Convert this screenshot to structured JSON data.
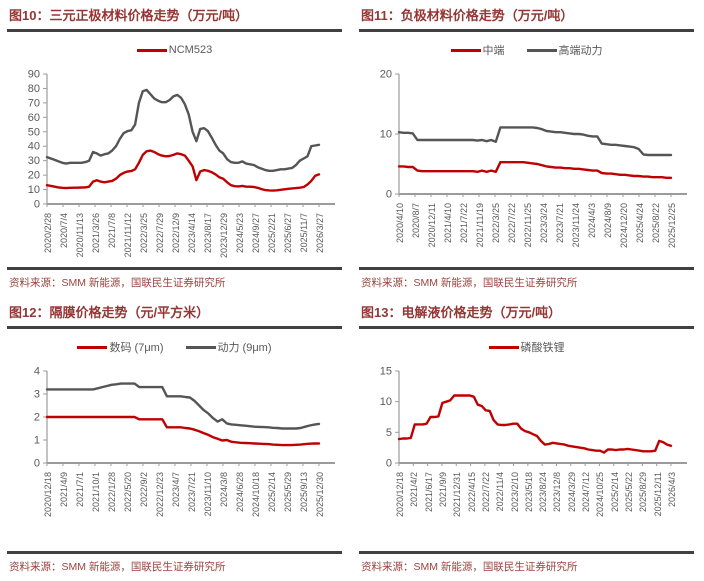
{
  "page": {
    "background": "#ffffff"
  },
  "styles": {
    "accent_red": "#C00000",
    "line_gray": "#555555",
    "title_color": "#943634",
    "source_color": "#9A4540",
    "rule_color": "#404040",
    "axis_color": "#9b9b9b",
    "tick_text_color": "#595959"
  },
  "chart_data": [
    {
      "type": "line",
      "title": "图10：三元正极材料价格走势（万元/吨）",
      "source": "资料来源：SMM 新能源，国联民生证券研究所",
      "grid": false,
      "legend_position": "top",
      "legend": [
        {
          "label": "NCM523",
          "color": "#C00000"
        }
      ],
      "ylim": [
        0,
        90
      ],
      "yticks": [
        0,
        10,
        20,
        30,
        40,
        50,
        60,
        70,
        80,
        90
      ],
      "x_labels": [
        "2020/2/28",
        "2020/7/4",
        "2020/11/13",
        "2021/3/26",
        "2021/7/8",
        "2021/11/12",
        "2022/3/25",
        "2022/7/29",
        "2022/12/9",
        "2023/4/14",
        "2023/8/17",
        "2023/12/29",
        "2024/5/23",
        "2024/9/27",
        "2025/2/21",
        "2025/6/27",
        "2025/11/7",
        "2026/3/27"
      ],
      "series": [
        {
          "name": "NCM523",
          "color": "#C00000",
          "values": [
            13,
            12.5,
            12,
            11.5,
            11.2,
            11,
            11.2,
            11.3,
            11.3,
            11.4,
            11.5,
            12,
            15.5,
            16.5,
            15.5,
            15,
            15.5,
            16,
            17.5,
            20,
            21.5,
            22.5,
            22.8,
            24,
            28.5,
            34,
            36.5,
            37,
            36,
            34.5,
            33.5,
            33,
            33.2,
            34,
            35,
            34.5,
            33.5,
            30,
            26,
            16.5,
            22.5,
            23.5,
            23,
            22,
            20.5,
            18.5,
            17.5,
            15,
            13,
            12.3,
            12.2,
            12.5,
            12,
            12,
            11.8,
            11.2,
            10.3,
            9.6,
            9.4,
            9.3,
            9.5,
            9.8,
            10.2,
            10.5,
            10.8,
            11,
            11.3,
            11.8,
            13.5,
            16,
            19.5,
            20.5
          ]
        },
        {
          "name": "",
          "color": "#555555",
          "values": [
            32.5,
            31.5,
            30.5,
            29.5,
            28.5,
            28,
            28.5,
            28.5,
            28.5,
            28.5,
            29,
            30,
            36,
            35,
            33.5,
            34.5,
            35,
            37,
            40,
            45,
            49,
            50.5,
            51,
            55,
            70,
            78,
            79,
            76,
            73,
            71.5,
            70.5,
            70.5,
            72,
            74.5,
            75.5,
            73.5,
            69,
            62,
            50,
            43.5,
            52,
            52.5,
            50.5,
            46,
            41,
            37,
            35,
            31,
            29,
            28.5,
            28.5,
            29.5,
            28,
            27.5,
            27,
            25.5,
            24.5,
            23.5,
            23,
            23,
            23.5,
            24,
            24,
            24.5,
            25,
            27,
            30,
            31.5,
            33,
            40,
            40.5,
            41
          ]
        }
      ]
    },
    {
      "type": "line",
      "title": "图11：负极材料价格走势（万元/吨）",
      "source": "资料来源：SMM 新能源，国联民生证券研究所",
      "grid": false,
      "legend_position": "top",
      "legend": [
        {
          "label": "中端",
          "color": "#C00000"
        },
        {
          "label": "高端动力",
          "color": "#555555"
        }
      ],
      "ylim": [
        0,
        20
      ],
      "yticks": [
        0,
        10,
        20
      ],
      "x_labels": [
        "2020/4/10",
        "2020/8/7",
        "2020/12/11",
        "2021/4/10",
        "2021/7/22",
        "2021/11/19",
        "2022/3/25",
        "2022/7/22",
        "2022/11/25",
        "2023/3/24",
        "2023/7/21",
        "2023/11/24",
        "2024/4/3",
        "2024/8/9",
        "2024/12/20",
        "2025/4/24",
        "2025/8/22",
        "2025/12/25"
      ],
      "series": [
        {
          "name": "中端",
          "color": "#C00000",
          "values": [
            4.6,
            4.6,
            4.5,
            4.5,
            3.9,
            3.8,
            3.8,
            3.8,
            3.8,
            3.8,
            3.8,
            3.8,
            3.8,
            3.8,
            3.8,
            3.8,
            3.8,
            3.7,
            3.9,
            3.7,
            3.9,
            3.7,
            5.3,
            5.3,
            5.3,
            5.3,
            5.3,
            5.3,
            5.2,
            5.1,
            5,
            4.8,
            4.6,
            4.5,
            4.4,
            4.4,
            4.3,
            4.3,
            4.2,
            4.2,
            4.1,
            4,
            3.9,
            3.9,
            3.5,
            3.4,
            3.4,
            3.3,
            3.2,
            3.2,
            3.1,
            3,
            3,
            2.9,
            2.9,
            2.8,
            2.8,
            2.8,
            2.7,
            2.7
          ]
        },
        {
          "name": "高端动力",
          "color": "#555555",
          "values": [
            10.3,
            10.2,
            10.2,
            10.1,
            9,
            9,
            9,
            9,
            9,
            9,
            9,
            9,
            9,
            9,
            9,
            9,
            9,
            8.9,
            9,
            8.8,
            9,
            8.7,
            11.1,
            11.1,
            11.1,
            11.1,
            11.1,
            11.1,
            11.1,
            11.1,
            11,
            10.8,
            10.5,
            10.4,
            10.3,
            10.3,
            10.2,
            10.1,
            10,
            10,
            9.9,
            9.7,
            9.6,
            9.6,
            8.4,
            8.3,
            8.2,
            8.2,
            8.1,
            8,
            7.9,
            7.8,
            7.5,
            6.6,
            6.5,
            6.5,
            6.5,
            6.5,
            6.5,
            6.5
          ]
        }
      ]
    },
    {
      "type": "line",
      "title": "图12：隔膜价格走势（元/平方米）",
      "source": "资料来源：SMM 新能源，国联民生证券研究所",
      "grid": false,
      "legend_position": "top",
      "legend": [
        {
          "label": "数码 (7μm)",
          "color": "#C00000"
        },
        {
          "label": "动力 (9μm)",
          "color": "#555555"
        }
      ],
      "ylim": [
        0,
        4
      ],
      "yticks": [
        0,
        1,
        2,
        3,
        4
      ],
      "x_labels": [
        "2020/12/18",
        "2021/4/9",
        "2021/7/1",
        "2021/10/1",
        "2022/1/28",
        "2022/5/20",
        "2022/9/2",
        "2022/12/23",
        "2023/4/7",
        "2023/7/21",
        "2023/11/10",
        "2024/3/8",
        "2024/6/28",
        "2024/10/18",
        "2025/2/14",
        "2025/5/29",
        "2025/9/13",
        "2025/12/30"
      ],
      "series": [
        {
          "name": "数码 (7μm)",
          "color": "#C00000",
          "values": [
            2,
            2,
            2,
            2,
            2,
            2,
            2,
            2,
            2,
            2,
            2,
            2,
            2,
            2,
            2,
            2,
            2,
            2,
            2,
            2,
            1.9,
            1.9,
            1.9,
            1.9,
            1.9,
            1.9,
            1.55,
            1.55,
            1.55,
            1.55,
            1.52,
            1.5,
            1.45,
            1.38,
            1.3,
            1.22,
            1.12,
            1.05,
            0.98,
            1,
            0.92,
            0.9,
            0.88,
            0.87,
            0.86,
            0.85,
            0.84,
            0.83,
            0.82,
            0.8,
            0.79,
            0.78,
            0.78,
            0.78,
            0.79,
            0.8,
            0.82,
            0.84,
            0.85,
            0.85
          ]
        },
        {
          "name": "动力 (9μm)",
          "color": "#555555",
          "values": [
            3.2,
            3.2,
            3.2,
            3.2,
            3.2,
            3.2,
            3.2,
            3.2,
            3.2,
            3.2,
            3.2,
            3.25,
            3.3,
            3.35,
            3.4,
            3.42,
            3.45,
            3.45,
            3.45,
            3.45,
            3.3,
            3.3,
            3.3,
            3.3,
            3.3,
            3.3,
            2.9,
            2.9,
            2.9,
            2.9,
            2.87,
            2.85,
            2.7,
            2.5,
            2.3,
            2.15,
            1.95,
            1.8,
            1.9,
            1.72,
            1.68,
            1.66,
            1.64,
            1.62,
            1.6,
            1.58,
            1.57,
            1.56,
            1.55,
            1.53,
            1.52,
            1.5,
            1.5,
            1.5,
            1.5,
            1.52,
            1.58,
            1.63,
            1.67,
            1.7
          ]
        }
      ]
    },
    {
      "type": "line",
      "title": "图13：电解液价格走势（万元/吨）",
      "source": "资料来源：SMM 新能源，国联民生证券研究所",
      "grid": false,
      "legend_position": "top",
      "legend": [
        {
          "label": "磷酸铁锂",
          "color": "#C00000"
        }
      ],
      "ylim": [
        0,
        15
      ],
      "yticks": [
        0,
        5,
        10,
        15
      ],
      "x_labels": [
        "2020/12/18",
        "2021/4/2",
        "2021/6/17",
        "2021/9/9",
        "2021/12/31",
        "2022/4/15",
        "2022/7/22",
        "2022/11/4",
        "2023/2/10",
        "2023/5/18",
        "2023/8/24",
        "2023/12/8",
        "2024/3/29",
        "2024/7/12",
        "2024/10/25",
        "2025/2/14",
        "2025/5/22",
        "2025/8/29",
        "2025/12/11",
        "2026/4/3"
      ],
      "series": [
        {
          "name": "磷酸铁锂",
          "color": "#C00000",
          "values": [
            3.9,
            4,
            4,
            4.1,
            6.3,
            6.3,
            6.3,
            6.4,
            7.5,
            7.5,
            7.6,
            9.8,
            10,
            10.2,
            11,
            11,
            11,
            11,
            11,
            10.8,
            9.5,
            9.3,
            8.6,
            8.5,
            7,
            6.3,
            6.2,
            6.2,
            6.3,
            6.4,
            6.4,
            5.6,
            5.2,
            5,
            4.7,
            4.4,
            3.6,
            3,
            3.1,
            3.3,
            3.2,
            3.1,
            3,
            2.8,
            2.7,
            2.6,
            2.5,
            2.4,
            2.2,
            2.1,
            2,
            2,
            1.7,
            2.2,
            2.2,
            2.1,
            2.2,
            2.2,
            2.3,
            2.2,
            2.1,
            2,
            1.9,
            1.9,
            1.9,
            2,
            3.6,
            3.4,
            3,
            2.8
          ]
        }
      ]
    }
  ]
}
